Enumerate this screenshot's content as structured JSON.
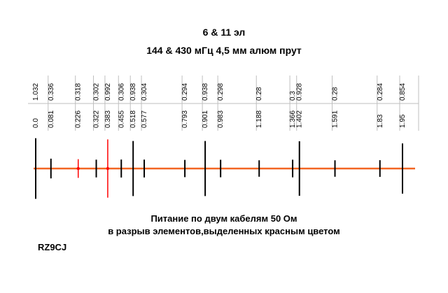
{
  "title_line1": "6 & 11 эл",
  "title_line2": "144 &  430 мГц  4,5 мм алюм прут",
  "caption_line1": "Питание по двум кабелям 50 Ом",
  "caption_line2": "в разрыв элементов,выделенных красным цветом",
  "author": "RZ9CJ",
  "colors": {
    "boom": "#f26522",
    "fed_element": "#ff0000",
    "element": "#000000",
    "table_line": "#bfbfbf"
  },
  "elements": [
    {
      "length": "1.032",
      "position": "0.0",
      "fed": false
    },
    {
      "length": "0.336",
      "position": "0.081",
      "fed": false
    },
    {
      "length": "0.318",
      "position": "0.226",
      "fed": true
    },
    {
      "length": "0.302",
      "position": "0.322",
      "fed": false
    },
    {
      "length": "0.992",
      "position": "0.383",
      "fed": true
    },
    {
      "length": "0.306",
      "position": "0.455",
      "fed": false
    },
    {
      "length": "0.938",
      "position": "0.518",
      "fed": false
    },
    {
      "length": "0.304",
      "position": "0.577",
      "fed": false
    },
    {
      "length": "0.294",
      "position": "0.793",
      "fed": false
    },
    {
      "length": "0.938",
      "position": "0.901",
      "fed": false
    },
    {
      "length": "0.298",
      "position": "0.983",
      "fed": false
    },
    {
      "length": "0.28",
      "position": "1.188",
      "fed": false
    },
    {
      "length": "0.3",
      "position": "1.366",
      "fed": false
    },
    {
      "length": "0.928",
      "position": "1.402",
      "fed": false
    },
    {
      "length": "0.28",
      "position": "1.591",
      "fed": false
    },
    {
      "length": "0.284",
      "position": "1.83",
      "fed": false
    },
    {
      "length": "0.854",
      "position": "1.95",
      "fed": false
    }
  ]
}
